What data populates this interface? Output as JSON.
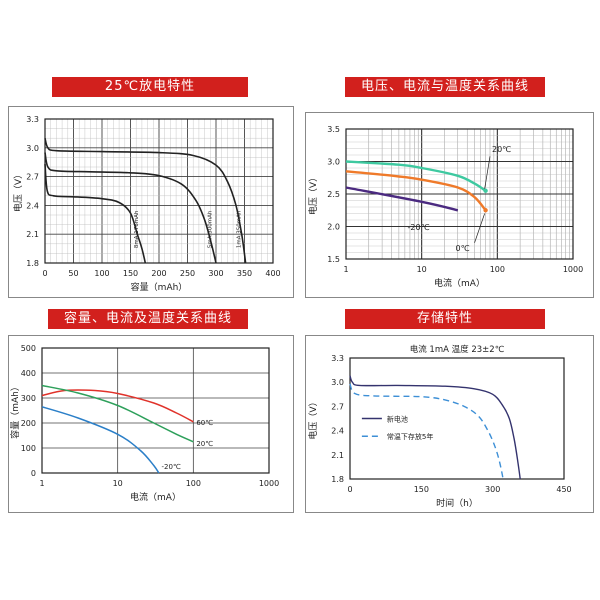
{
  "banners": {
    "p1": "25℃放电特性",
    "p2": "电压、电流与温度关系曲线",
    "p3": "容量、电流及温度关系曲线",
    "p4": "存储特性"
  },
  "colors": {
    "banner": "#d2201d",
    "red": "#e0322a",
    "green": "#2ea05b",
    "blue": "#2b7fc8",
    "teal": "#3ec9a0",
    "purple": "#4b2a80",
    "orange": "#ef7a2a",
    "navy": "#34336e",
    "dash": "#3d8fd6",
    "black": "#222222"
  },
  "chart_data": [
    {
      "type": "line",
      "title": "25℃放电特性",
      "xlabel": "容量（mAh）",
      "ylabel": "电压（V）",
      "xlim": [
        0,
        400
      ],
      "ylim": [
        1.8,
        3.3
      ],
      "x_ticks": [
        "0",
        "50",
        "100",
        "150",
        "200",
        "250",
        "300",
        "350",
        "400"
      ],
      "y_ticks": [
        "1.8",
        "2.1",
        "2.4",
        "2.7",
        "3.0",
        "3.3"
      ],
      "grid": true,
      "series": [
        {
          "name": "8mA  176mAh",
          "x": [
            0,
            4,
            15,
            50,
            100,
            130,
            150,
            162,
            170,
            176
          ],
          "y": [
            2.83,
            2.55,
            2.5,
            2.49,
            2.47,
            2.43,
            2.32,
            2.1,
            1.95,
            1.8
          ]
        },
        {
          "name": "5mA  300mAh",
          "x": [
            0,
            5,
            20,
            80,
            150,
            200,
            240,
            265,
            280,
            292,
            300
          ],
          "y": [
            2.95,
            2.8,
            2.76,
            2.75,
            2.74,
            2.71,
            2.62,
            2.45,
            2.25,
            2.0,
            1.8
          ]
        },
        {
          "name": "1mA  350mAh",
          "x": [
            0,
            5,
            20,
            100,
            200,
            260,
            300,
            320,
            335,
            345,
            352
          ],
          "y": [
            3.1,
            3.0,
            2.97,
            2.96,
            2.95,
            2.92,
            2.82,
            2.65,
            2.4,
            2.1,
            1.8
          ]
        }
      ],
      "annotations": [
        "8mA  176mAh",
        "5mA  300mAh",
        "1mA  350mAh"
      ]
    },
    {
      "type": "line",
      "title": "电压、电流与温度关系曲线",
      "xlabel": "电流（mA）",
      "ylabel": "电压（V）",
      "x_scale": "log",
      "xlim": [
        1,
        1000
      ],
      "ylim": [
        1.5,
        3.5
      ],
      "x_ticks": [
        "1",
        "10",
        "100",
        "1000"
      ],
      "y_ticks": [
        "1.5",
        "2.0",
        "2.5",
        "3.0",
        "3.5"
      ],
      "grid": true,
      "series": [
        {
          "name": "20℃",
          "x": [
            1,
            5,
            10,
            30,
            50,
            70
          ],
          "y": [
            3.0,
            2.95,
            2.9,
            2.78,
            2.66,
            2.55
          ]
        },
        {
          "name": "0℃",
          "x": [
            1,
            5,
            10,
            30,
            50,
            70
          ],
          "y": [
            2.85,
            2.77,
            2.72,
            2.6,
            2.45,
            2.25
          ]
        },
        {
          "name": "-20℃",
          "x": [
            1,
            10,
            30
          ],
          "y": [
            2.6,
            2.38,
            2.25
          ]
        }
      ],
      "annotations": [
        "20℃",
        "0℃",
        "-20℃"
      ]
    },
    {
      "type": "line",
      "title": "容量、电流及温度关系曲线",
      "xlabel": "电流（mA）",
      "ylabel": "容量（mAh）",
      "x_scale": "log",
      "xlim": [
        1,
        1000
      ],
      "ylim": [
        0,
        500
      ],
      "x_ticks": [
        "1",
        "10",
        "100",
        "1000"
      ],
      "y_ticks": [
        "0",
        "100",
        "200",
        "300",
        "400",
        "500"
      ],
      "grid": true,
      "series": [
        {
          "name": "60℃",
          "x": [
            1,
            2,
            5,
            10,
            30,
            60,
            100
          ],
          "y": [
            310,
            330,
            330,
            318,
            280,
            240,
            205
          ]
        },
        {
          "name": "20℃",
          "x": [
            1,
            3,
            10,
            30,
            60,
            100
          ],
          "y": [
            350,
            320,
            270,
            200,
            155,
            125
          ]
        },
        {
          "name": "-20℃",
          "x": [
            1,
            3,
            10,
            20,
            30,
            35
          ],
          "y": [
            265,
            220,
            155,
            90,
            30,
            0
          ]
        }
      ],
      "annotations": [
        "60℃",
        "20℃",
        "-20℃"
      ]
    },
    {
      "type": "line",
      "title": "存储特性",
      "subtitle": "电流 1mA   温度 23±2℃",
      "xlabel": "时间（h）",
      "ylabel": "电压（V）",
      "xlim": [
        0,
        450
      ],
      "ylim": [
        1.8,
        3.3
      ],
      "x_ticks": [
        "0",
        "150",
        "300",
        "450"
      ],
      "y_ticks": [
        "1.8",
        "2.1",
        "2.4",
        "2.7",
        "3.0",
        "3.3"
      ],
      "grid": false,
      "legend_position": "middle-left",
      "series": [
        {
          "name": "新电池",
          "style": "solid",
          "x": [
            0,
            5,
            20,
            100,
            200,
            260,
            300,
            320,
            335,
            345,
            352,
            358
          ],
          "y": [
            3.08,
            3.0,
            2.96,
            2.96,
            2.95,
            2.92,
            2.85,
            2.72,
            2.55,
            2.3,
            2.05,
            1.8
          ]
        },
        {
          "name": "常温下存放5年",
          "style": "dashed",
          "x": [
            0,
            10,
            50,
            150,
            200,
            240,
            270,
            290,
            305,
            315,
            322
          ],
          "y": [
            2.98,
            2.86,
            2.83,
            2.82,
            2.78,
            2.7,
            2.58,
            2.4,
            2.2,
            2.0,
            1.8
          ]
        }
      ]
    }
  ]
}
